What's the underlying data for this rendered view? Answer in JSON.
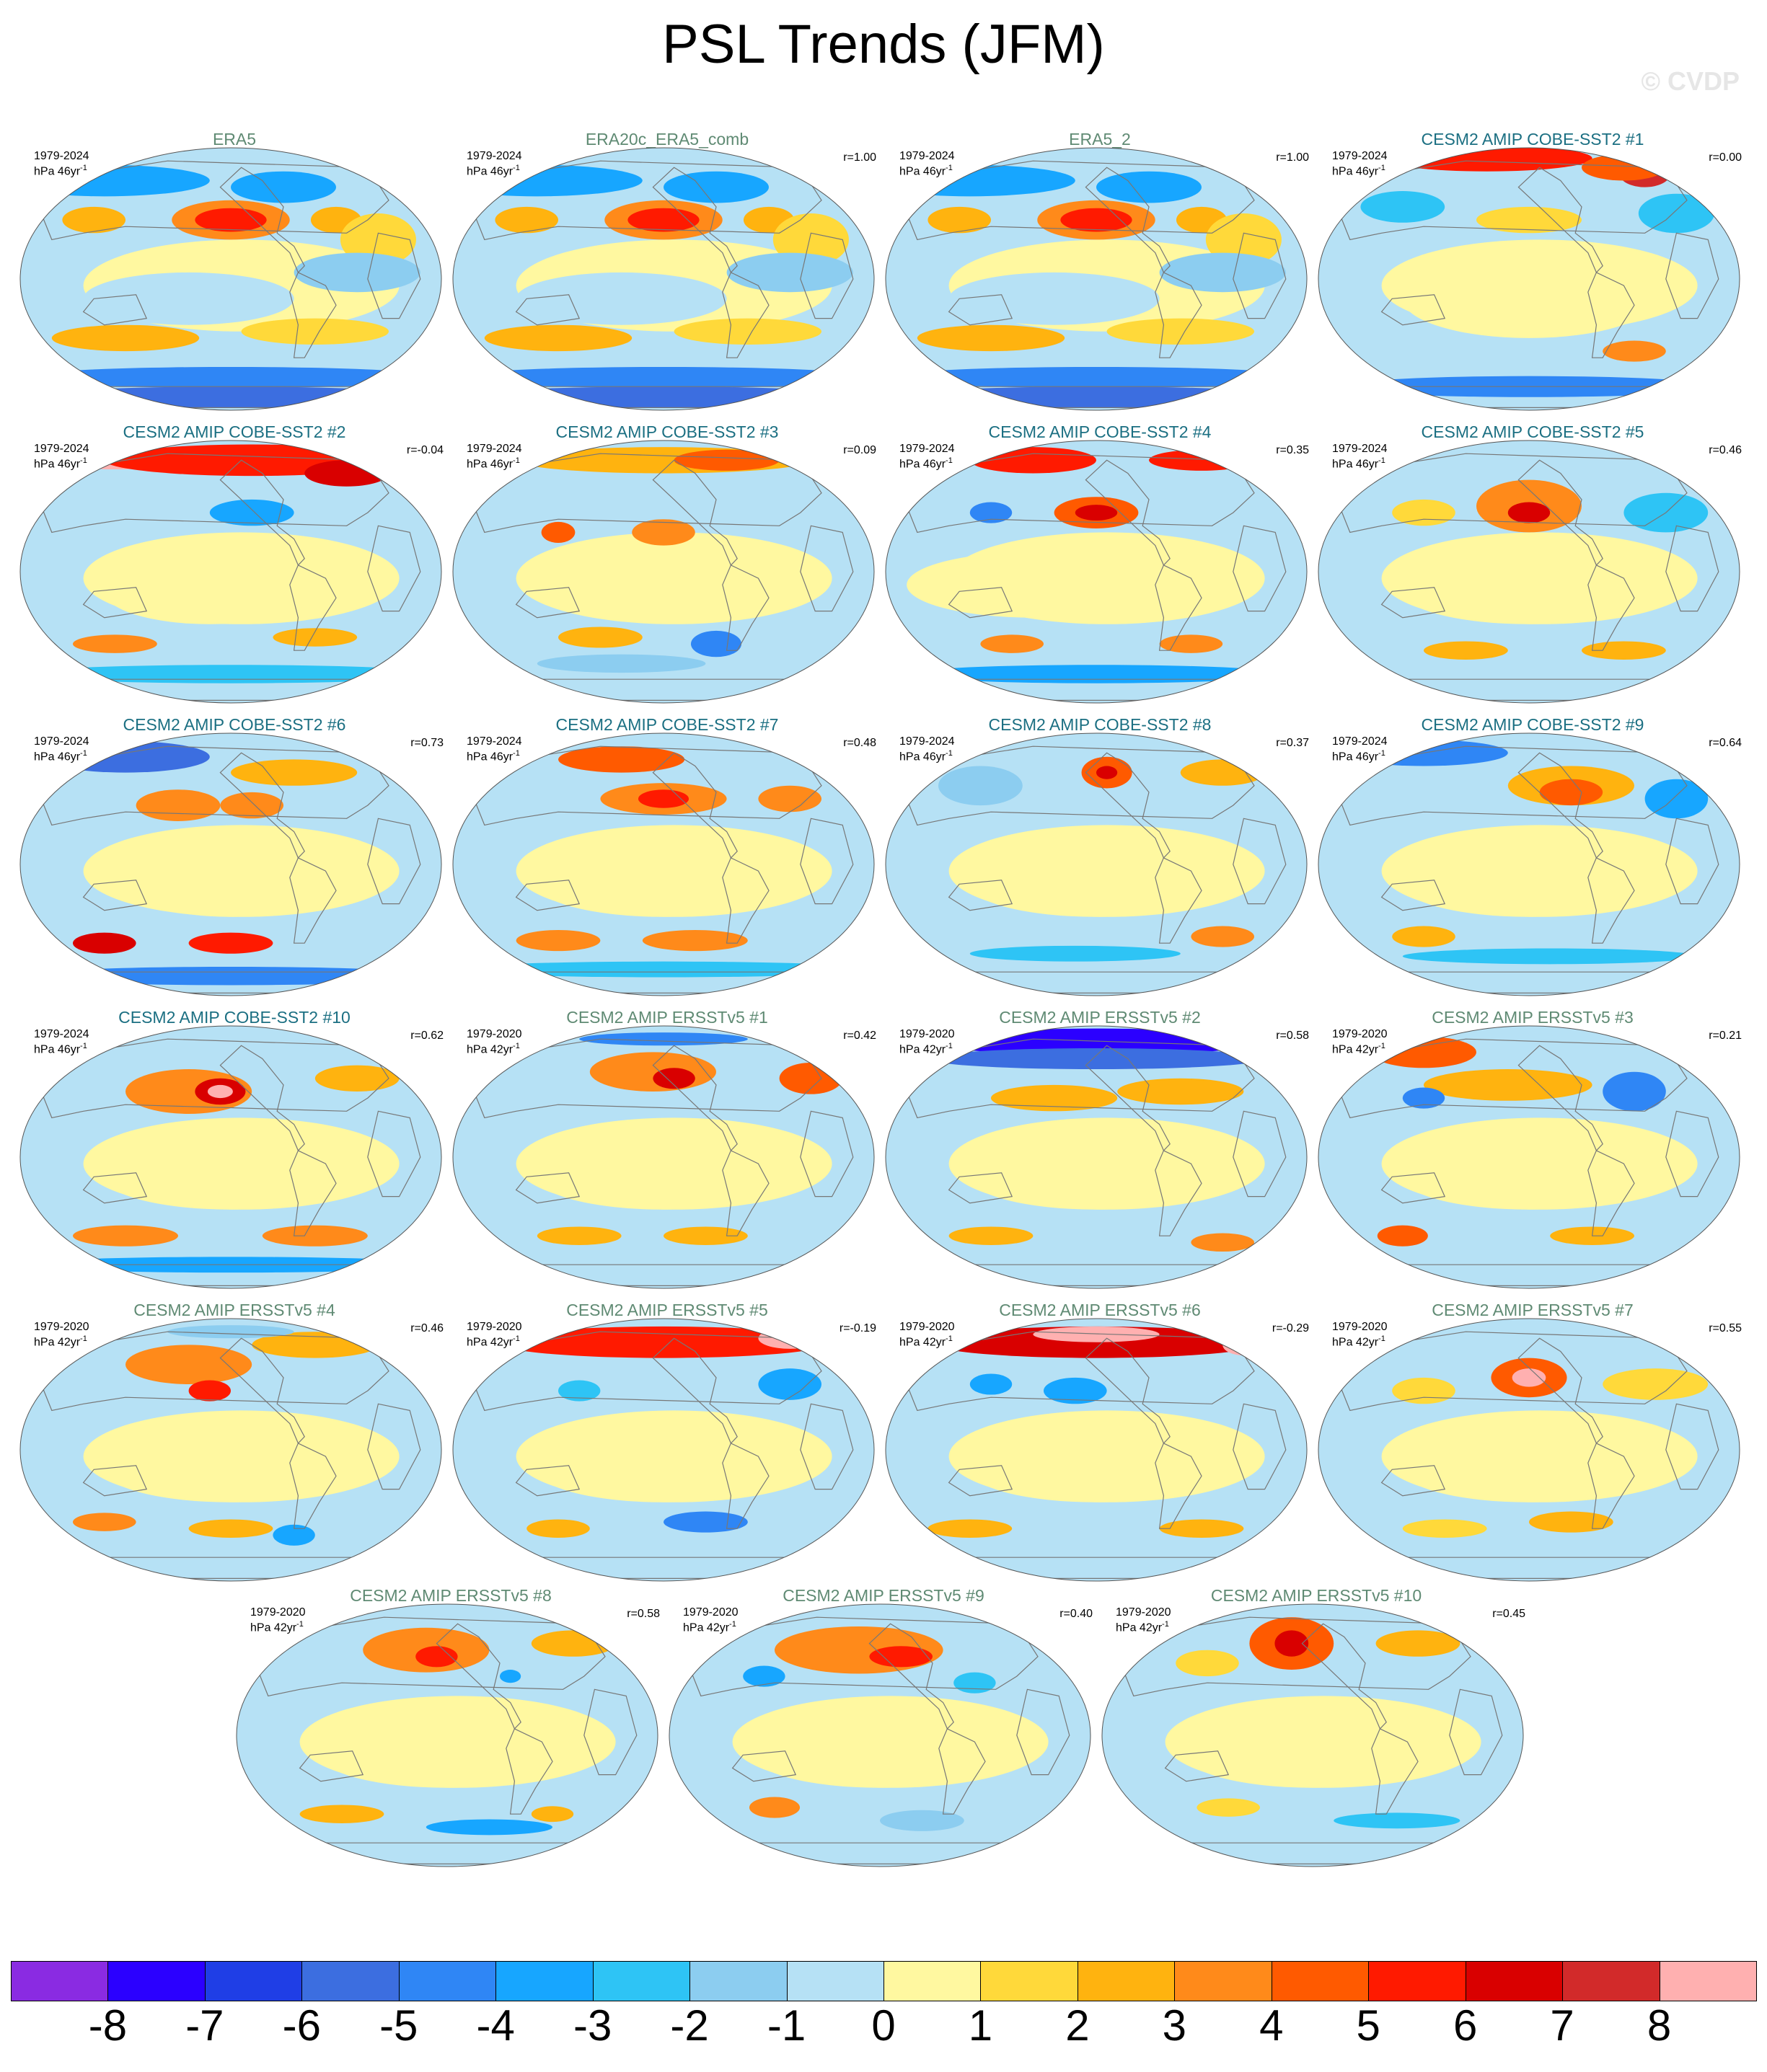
{
  "title": "PSL Trends (JFM)",
  "watermark": "© CVDP",
  "units_prefix": "hPa ",
  "panels": [
    {
      "title": "ERA5",
      "group": "obs",
      "period": "1979-2024",
      "years": "46yr",
      "r": "",
      "pattern": 0
    },
    {
      "title": "ERA20c_ERA5_comb",
      "group": "obs",
      "period": "1979-2024",
      "years": "46yr",
      "r": "r=1.00",
      "pattern": 0
    },
    {
      "title": "ERA5_2",
      "group": "obs",
      "period": "1979-2024",
      "years": "46yr",
      "r": "r=1.00",
      "pattern": 0
    },
    {
      "title": "CESM2 AMIP COBE-SST2 #1",
      "group": "cobe",
      "period": "1979-2024",
      "years": "46yr",
      "r": "r=0.00",
      "pattern": 1
    },
    {
      "title": "CESM2 AMIP COBE-SST2 #2",
      "group": "cobe",
      "period": "1979-2024",
      "years": "46yr",
      "r": "r=-0.04",
      "pattern": 2
    },
    {
      "title": "CESM2 AMIP COBE-SST2 #3",
      "group": "cobe",
      "period": "1979-2024",
      "years": "46yr",
      "r": "r=0.09",
      "pattern": 3
    },
    {
      "title": "CESM2 AMIP COBE-SST2 #4",
      "group": "cobe",
      "period": "1979-2024",
      "years": "46yr",
      "r": "r=0.35",
      "pattern": 4
    },
    {
      "title": "CESM2 AMIP COBE-SST2 #5",
      "group": "cobe",
      "period": "1979-2024",
      "years": "46yr",
      "r": "r=0.46",
      "pattern": 5
    },
    {
      "title": "CESM2 AMIP COBE-SST2 #6",
      "group": "cobe",
      "period": "1979-2024",
      "years": "46yr",
      "r": "r=0.73",
      "pattern": 6
    },
    {
      "title": "CESM2 AMIP COBE-SST2 #7",
      "group": "cobe",
      "period": "1979-2024",
      "years": "46yr",
      "r": "r=0.48",
      "pattern": 7
    },
    {
      "title": "CESM2 AMIP COBE-SST2 #8",
      "group": "cobe",
      "period": "1979-2024",
      "years": "46yr",
      "r": "r=0.37",
      "pattern": 8
    },
    {
      "title": "CESM2 AMIP COBE-SST2 #9",
      "group": "cobe",
      "period": "1979-2024",
      "years": "46yr",
      "r": "r=0.64",
      "pattern": 9
    },
    {
      "title": "CESM2 AMIP COBE-SST2 #10",
      "group": "cobe",
      "period": "1979-2024",
      "years": "46yr",
      "r": "r=0.62",
      "pattern": 10
    },
    {
      "title": "CESM2 AMIP ERSSTv5 #1",
      "group": "ersst",
      "period": "1979-2020",
      "years": "42yr",
      "r": "r=0.42",
      "pattern": 11
    },
    {
      "title": "CESM2 AMIP ERSSTv5 #2",
      "group": "ersst",
      "period": "1979-2020",
      "years": "42yr",
      "r": "r=0.58",
      "pattern": 12
    },
    {
      "title": "CESM2 AMIP ERSSTv5 #3",
      "group": "ersst",
      "period": "1979-2020",
      "years": "42yr",
      "r": "r=0.21",
      "pattern": 13
    },
    {
      "title": "CESM2 AMIP ERSSTv5 #4",
      "group": "ersst",
      "period": "1979-2020",
      "years": "42yr",
      "r": "r=0.46",
      "pattern": 14
    },
    {
      "title": "CESM2 AMIP ERSSTv5 #5",
      "group": "ersst",
      "period": "1979-2020",
      "years": "42yr",
      "r": "r=-0.19",
      "pattern": 15
    },
    {
      "title": "CESM2 AMIP ERSSTv5 #6",
      "group": "ersst",
      "period": "1979-2020",
      "years": "42yr",
      "r": "r=-0.29",
      "pattern": 16
    },
    {
      "title": "CESM2 AMIP ERSSTv5 #7",
      "group": "ersst",
      "period": "1979-2020",
      "years": "42yr",
      "r": "r=0.55",
      "pattern": 17
    },
    {
      "title": "CESM2 AMIP ERSSTv5 #8",
      "group": "ersst",
      "period": "1979-2020",
      "years": "42yr",
      "r": "r=0.58",
      "pattern": 18
    },
    {
      "title": "CESM2 AMIP ERSSTv5 #9",
      "group": "ersst",
      "period": "1979-2020",
      "years": "42yr",
      "r": "r=0.40",
      "pattern": 19
    },
    {
      "title": "CESM2 AMIP ERSSTv5 #10",
      "group": "ersst",
      "period": "1979-2020",
      "years": "42yr",
      "r": "r=0.45",
      "pattern": 20
    }
  ],
  "colorbar": {
    "labels": [
      "-8",
      "-7",
      "-6",
      "-5",
      "-4",
      "-3",
      "-2",
      "-1",
      "0",
      "1",
      "2",
      "3",
      "4",
      "5",
      "6",
      "7",
      "8"
    ],
    "colors": [
      "#8a2be2",
      "#2b00ff",
      "#1f3ee6",
      "#3c6ee0",
      "#2f86f5",
      "#17a6ff",
      "#2ec4f5",
      "#8ccdf0",
      "#b6e1f5",
      "#fff8a0",
      "#ffd93a",
      "#ffb30f",
      "#ff8a1a",
      "#ff5a00",
      "#ff1a00",
      "#d90000",
      "#d22a2a",
      "#ffb0b0"
    ]
  },
  "colors": {
    "obs_title": "#5f8a73",
    "cobe_title": "#1b6f82",
    "ersst_title": "#5f8a73"
  }
}
